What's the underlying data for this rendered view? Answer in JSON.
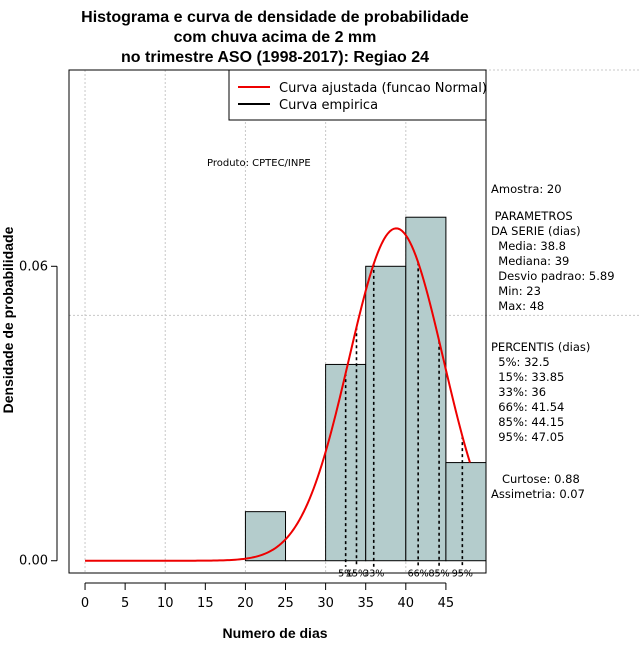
{
  "chart_data": {
    "type": "bar",
    "title_lines": [
      "Histograma e curva de densidade de probabilidade",
      "com chuva acima de 2 mm",
      "no trimestre ASO (1998-2017): Regiao 24"
    ],
    "xlabel": "Numero de dias",
    "ylabel": "Densidade de probabilidade",
    "xlim": [
      -2,
      50
    ],
    "ylim": [
      -0.0025,
      0.1
    ],
    "x_ticks": [
      0,
      5,
      10,
      15,
      20,
      25,
      30,
      35,
      40,
      45
    ],
    "y_ticks": [
      0.0,
      0.06
    ],
    "y_tick_labels": [
      "0.00",
      "0.06"
    ],
    "grid_x": [
      0,
      10,
      20,
      30,
      40
    ],
    "grid_y": [
      0.05,
      0.1
    ],
    "grid": true,
    "bins": [
      {
        "x0": 20,
        "x1": 25,
        "density": 0.01
      },
      {
        "x0": 25,
        "x1": 30,
        "density": 0.0
      },
      {
        "x0": 30,
        "x1": 35,
        "density": 0.04
      },
      {
        "x0": 35,
        "x1": 40,
        "density": 0.06
      },
      {
        "x0": 40,
        "x1": 45,
        "density": 0.07
      },
      {
        "x0": 45,
        "x1": 50,
        "density": 0.02
      }
    ],
    "bar_color": "#b4cccc",
    "normal_fit": {
      "mean": 38.8,
      "sd": 5.89,
      "x_from": 0,
      "x_to": 48,
      "color": "#ee0000"
    },
    "percentiles": [
      {
        "label": "5%",
        "value": 32.5
      },
      {
        "label": "15%",
        "value": 33.85
      },
      {
        "label": "33%",
        "value": 36
      },
      {
        "label": "66%",
        "value": 41.54
      },
      {
        "label": "85%",
        "value": 44.15
      },
      {
        "label": "95%",
        "value": 47.05
      }
    ],
    "legend": {
      "placement": "top-right",
      "entries": [
        {
          "label": "Curva ajustada (funcao Normal)",
          "color": "#ee0000"
        },
        {
          "label": "Curva empirica",
          "color": "#000000"
        }
      ]
    },
    "product_note": "Produto: CPTEC/INPE",
    "stats_lines": [
      "Amostra: 20",
      " PARAMETROS",
      "DA SERIE (dias)",
      "  Media: 38.8",
      "  Mediana: 39",
      "  Desvio padrao: 5.89",
      "  Min: 23",
      "  Max: 48",
      "PERCENTIS (dias)",
      "  5%: 32.5",
      "  15%: 33.85",
      "  33%: 36",
      "  66%: 41.54",
      "  85%: 44.15",
      "  95%: 47.05",
      "   Curtose: 0.88",
      "Assimetria: 0.07"
    ]
  }
}
